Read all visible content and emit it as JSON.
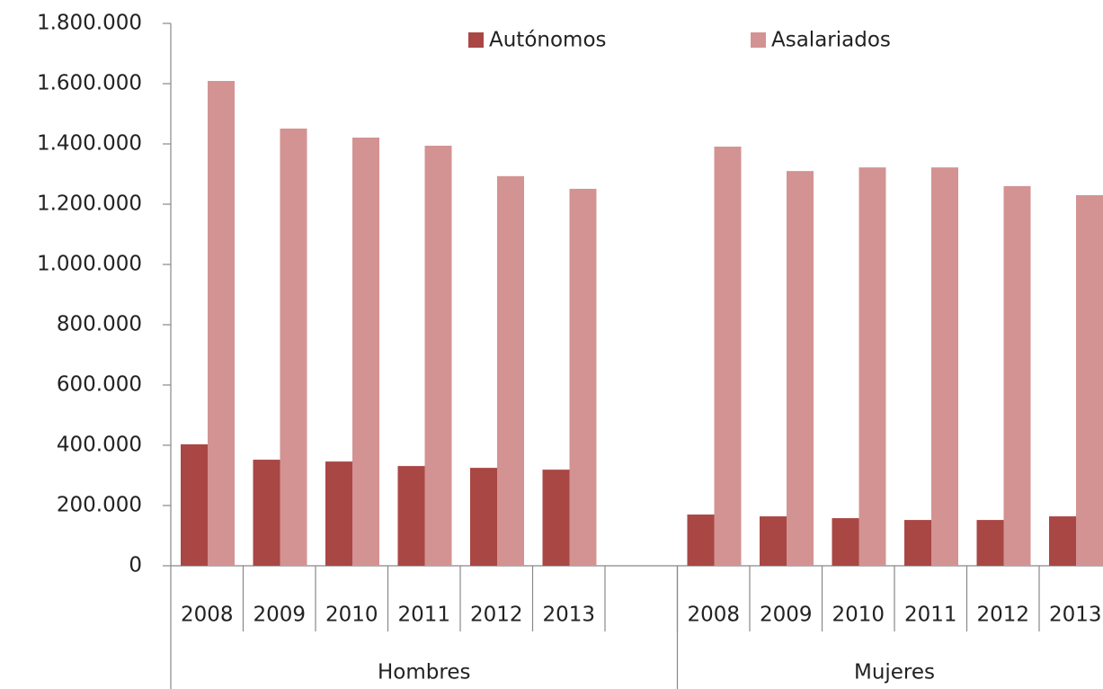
{
  "chart_data": {
    "type": "bar",
    "categories": [
      "2008",
      "2009",
      "2010",
      "2011",
      "2012",
      "2013",
      null,
      "2008",
      "2009",
      "2010",
      "2011",
      "2012",
      "2013"
    ],
    "groups": [
      {
        "name": "Hombres",
        "count": 7
      },
      {
        "name": "Mujeres",
        "count": 6
      }
    ],
    "series": [
      {
        "name": "Autónomos",
        "color": "#a94744",
        "values": [
          403000,
          352000,
          346000,
          331000,
          325000,
          319000,
          null,
          170000,
          164000,
          158000,
          152000,
          152000,
          164000
        ]
      },
      {
        "name": "Asalariados",
        "color": "#d39392",
        "values": [
          1609000,
          1451000,
          1421000,
          1394000,
          1293000,
          1251000,
          null,
          1391000,
          1310000,
          1322000,
          1322000,
          1260000,
          1230000
        ]
      }
    ],
    "ylim": [
      0,
      1800000
    ],
    "yticks": [
      0,
      {
        "value": 200000,
        "label": "200.000"
      },
      {
        "value": 400000,
        "label": "400.000"
      },
      {
        "value": 600000,
        "label": "600.000"
      },
      {
        "value": 800000,
        "label": "800.000"
      },
      {
        "value": 1000000,
        "label": "1.000.000"
      },
      {
        "value": 1200000,
        "label": "1.200.000"
      },
      {
        "value": 1400000,
        "label": "1.400.000"
      },
      {
        "value": 1600000,
        "label": "1.600.000"
      },
      {
        "value": 1800000,
        "label": "1.800.000"
      }
    ],
    "legend": "top"
  }
}
